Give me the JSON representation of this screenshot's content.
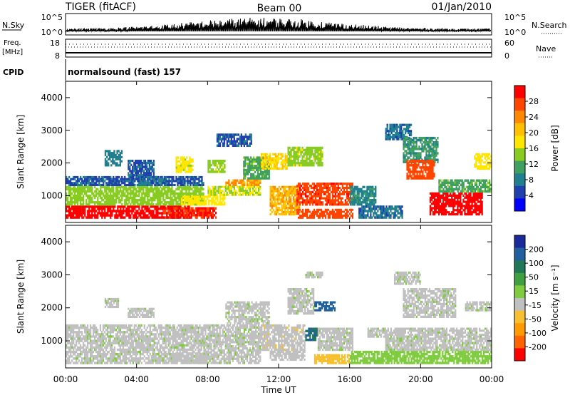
{
  "header": {
    "station": "TIGER (fitACF)",
    "beam": "Beam 00",
    "date": "01/Jan/2010"
  },
  "strip_panels": {
    "nsky": {
      "label": "N.Sky",
      "ticks": [
        "10^5",
        "10^0"
      ]
    },
    "nsearch": {
      "label": "N.Search",
      "ticks": [
        "10^5",
        "10^0"
      ]
    },
    "freq": {
      "label_line1": "Freq.",
      "label_line2": "[MHz]",
      "ticks": [
        "18",
        "8"
      ]
    },
    "nave": {
      "label": "Nave",
      "ticks": [
        "60",
        "0"
      ]
    },
    "cpid": {
      "label": "CPID",
      "value": "normalsound (fast) 157"
    }
  },
  "power_colorbar": {
    "title": "Power [dB]",
    "ticks": [
      "28",
      "24",
      "20",
      "16",
      "12",
      "8",
      "4"
    ],
    "colors": [
      "#ff0000",
      "#ff4400",
      "#ff8800",
      "#ffc000",
      "#ffe600",
      "#88cc22",
      "#40a060",
      "#208090",
      "#2040b0",
      "#0000ff"
    ]
  },
  "velocity_colorbar": {
    "title": "Velocity [m s⁻¹]",
    "ticks": [
      "200",
      "100",
      "50",
      "15",
      "-15",
      "-50",
      "-100",
      "-200"
    ],
    "colors": [
      "#1a2a9a",
      "#2060a0",
      "#207858",
      "#40a040",
      "#80cc40",
      "#c0c0c0",
      "#f8c030",
      "#ff9a00",
      "#ff6400",
      "#ff0000"
    ]
  },
  "axes": {
    "ylabel": "Slant Range [km]",
    "yticks": [
      "4000",
      "3000",
      "2000",
      "1000"
    ],
    "xticks": [
      "00:00",
      "04:00",
      "08:00",
      "12:00",
      "16:00",
      "20:00",
      "00:00"
    ],
    "xlabel": "Time UT"
  },
  "chart_data": [
    {
      "type": "heatmap",
      "title": "Power [dB]",
      "ylabel": "Slant Range [km]",
      "xlabel": "Time UT",
      "x_range_hours": [
        0,
        24
      ],
      "y_range_km": [
        180,
        4500
      ],
      "colorbar_range_db": [
        0,
        32
      ],
      "regions": [
        {
          "t": [
            0.0,
            7.0
          ],
          "r": [
            300,
            700
          ],
          "v": 30
        },
        {
          "t": [
            0.0,
            7.8
          ],
          "r": [
            700,
            1300
          ],
          "v": 14
        },
        {
          "t": [
            0.0,
            7.8
          ],
          "r": [
            1300,
            1600
          ],
          "v": 6
        },
        {
          "t": [
            5.5,
            8.5
          ],
          "r": [
            300,
            650
          ],
          "v": 29
        },
        {
          "t": [
            6.5,
            9.0
          ],
          "r": [
            700,
            1000
          ],
          "v": 18
        },
        {
          "t": [
            8.0,
            11.0
          ],
          "r": [
            1000,
            1300
          ],
          "v": 16
        },
        {
          "t": [
            9.0,
            11.0
          ],
          "r": [
            1300,
            1500
          ],
          "v": 23
        },
        {
          "t": [
            6.2,
            7.2
          ],
          "r": [
            1700,
            2200
          ],
          "v": 17
        },
        {
          "t": [
            8.0,
            9.0
          ],
          "r": [
            1700,
            2100
          ],
          "v": 15
        },
        {
          "t": [
            10.0,
            11.5
          ],
          "r": [
            1500,
            2200
          ],
          "v": 12
        },
        {
          "t": [
            11.0,
            12.5
          ],
          "r": [
            1800,
            2300
          ],
          "v": 19
        },
        {
          "t": [
            11.5,
            13.2
          ],
          "r": [
            400,
            1300
          ],
          "v": 22
        },
        {
          "t": [
            13.0,
            16.2
          ],
          "r": [
            700,
            1400
          ],
          "v": 28
        },
        {
          "t": [
            13.0,
            16.2
          ],
          "r": [
            300,
            600
          ],
          "v": 27
        },
        {
          "t": [
            16.0,
            17.5
          ],
          "r": [
            700,
            1300
          ],
          "v": 9
        },
        {
          "t": [
            12.5,
            14.5
          ],
          "r": [
            1900,
            2500
          ],
          "v": 15
        },
        {
          "t": [
            2.2,
            3.2
          ],
          "r": [
            1900,
            2400
          ],
          "v": 8
        },
        {
          "t": [
            3.5,
            5.0
          ],
          "r": [
            1600,
            2100
          ],
          "v": 6
        },
        {
          "t": [
            4.0,
            5.5
          ],
          "r": [
            1300,
            1600
          ],
          "v": 7
        },
        {
          "t": [
            8.5,
            10.5
          ],
          "r": [
            2500,
            2900
          ],
          "v": 6
        },
        {
          "t": [
            18.0,
            19.5
          ],
          "r": [
            2700,
            3200
          ],
          "v": 7
        },
        {
          "t": [
            19.0,
            21.0
          ],
          "r": [
            2000,
            2800
          ],
          "v": 10
        },
        {
          "t": [
            19.2,
            20.8
          ],
          "r": [
            1500,
            2100
          ],
          "v": 27
        },
        {
          "t": [
            20.5,
            23.5
          ],
          "r": [
            400,
            1100
          ],
          "v": 30
        },
        {
          "t": [
            21.0,
            24.0
          ],
          "r": [
            1100,
            1500
          ],
          "v": 12
        },
        {
          "t": [
            16.5,
            19.0
          ],
          "r": [
            300,
            700
          ],
          "v": 7
        },
        {
          "t": [
            23.0,
            24.0
          ],
          "r": [
            1800,
            2300
          ],
          "v": 18
        }
      ]
    },
    {
      "type": "heatmap",
      "title": "Velocity [m s⁻¹]",
      "ylabel": "Slant Range [km]",
      "xlabel": "Time UT",
      "x_range_hours": [
        0,
        24
      ],
      "y_range_km": [
        180,
        4500
      ],
      "colorbar_range_ms": [
        -250,
        250
      ],
      "regions": [
        {
          "t": [
            0.0,
            8.0
          ],
          "r": [
            300,
            1300
          ],
          "v": 0
        },
        {
          "t": [
            0.0,
            8.0
          ],
          "r": [
            1300,
            1500
          ],
          "v": 0
        },
        {
          "t": [
            6.0,
            8.0
          ],
          "r": [
            300,
            650
          ],
          "v": -40
        },
        {
          "t": [
            8.0,
            11.0
          ],
          "r": [
            300,
            1500
          ],
          "v": 0
        },
        {
          "t": [
            9.0,
            11.5
          ],
          "r": [
            1500,
            2200
          ],
          "v": 0
        },
        {
          "t": [
            11.0,
            13.5
          ],
          "r": [
            700,
            1500
          ],
          "v": -45
        },
        {
          "t": [
            11.5,
            13.5
          ],
          "r": [
            400,
            700
          ],
          "v": -40
        },
        {
          "t": [
            13.5,
            14.2
          ],
          "r": [
            1000,
            1400
          ],
          "v": 150
        },
        {
          "t": [
            14.2,
            16.2
          ],
          "r": [
            700,
            1400
          ],
          "v": 0
        },
        {
          "t": [
            14.0,
            16.0
          ],
          "r": [
            300,
            600
          ],
          "v": -60
        },
        {
          "t": [
            14.0,
            15.2
          ],
          "r": [
            1900,
            2200
          ],
          "v": 180
        },
        {
          "t": [
            12.5,
            14.0
          ],
          "r": [
            1800,
            2600
          ],
          "v": 0
        },
        {
          "t": [
            13.5,
            14.5
          ],
          "r": [
            2900,
            3100
          ],
          "v": 0
        },
        {
          "t": [
            16.0,
            24.0
          ],
          "r": [
            300,
            700
          ],
          "v": 30
        },
        {
          "t": [
            17.0,
            24.0
          ],
          "r": [
            1100,
            1400
          ],
          "v": 0
        },
        {
          "t": [
            18.0,
            24.0
          ],
          "r": [
            700,
            1100
          ],
          "v": 0
        },
        {
          "t": [
            19.0,
            22.0
          ],
          "r": [
            1700,
            2600
          ],
          "v": 0
        },
        {
          "t": [
            18.5,
            20.0
          ],
          "r": [
            2700,
            3100
          ],
          "v": 0
        },
        {
          "t": [
            22.5,
            24.0
          ],
          "r": [
            1900,
            2200
          ],
          "v": 0
        },
        {
          "t": [
            2.2,
            3.0
          ],
          "r": [
            2000,
            2300
          ],
          "v": 0
        },
        {
          "t": [
            3.5,
            5.0
          ],
          "r": [
            1700,
            2000
          ],
          "v": 0
        }
      ]
    }
  ]
}
